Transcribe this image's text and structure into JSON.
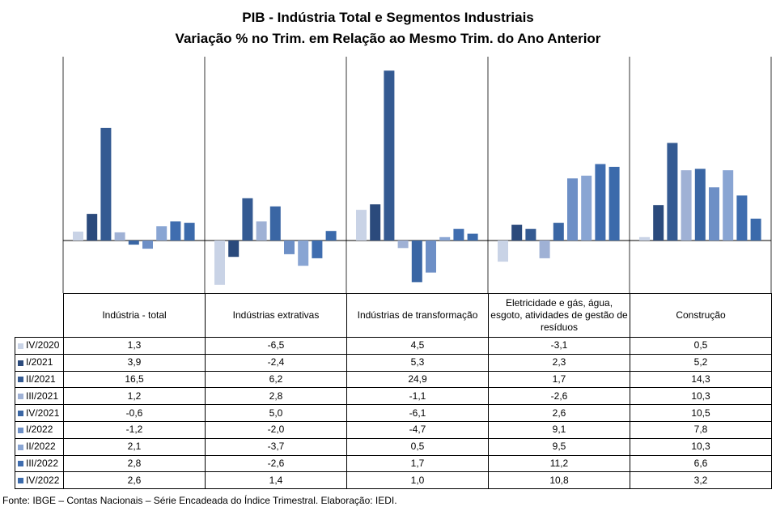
{
  "chart_data": {
    "type": "bar",
    "title": "PIB - Indústria Total e Segmentos Industriais",
    "subtitle": "Variação % no Trim. em Relação ao Mesmo Trim. do Ano Anterior",
    "categories": [
      "Indústria - total",
      "Indústrias extrativas",
      "Indústrias de transformação",
      "Eletricidade e gás, água, esgoto, atividades de gestão de resíduos",
      "Construção"
    ],
    "series": [
      {
        "name": "IV/2020",
        "color": "#c9d3e6",
        "values": [
          1.3,
          -6.5,
          4.5,
          -3.1,
          0.5
        ],
        "labels": [
          "1,3",
          "-6,5",
          "4,5",
          "-3,1",
          "0,5"
        ]
      },
      {
        "name": "I/2021",
        "color": "#2b4a7c",
        "values": [
          3.9,
          -2.4,
          5.3,
          2.3,
          5.2
        ],
        "labels": [
          "3,9",
          "-2,4",
          "5,3",
          "2,3",
          "5,2"
        ]
      },
      {
        "name": "II/2021",
        "color": "#345a92",
        "values": [
          16.5,
          6.2,
          24.9,
          1.7,
          14.3
        ],
        "labels": [
          "16,5",
          "6,2",
          "24,9",
          "1,7",
          "14,3"
        ]
      },
      {
        "name": "III/2021",
        "color": "#9fb1d5",
        "values": [
          1.2,
          2.8,
          -1.1,
          -2.6,
          10.3
        ],
        "labels": [
          "1,2",
          "2,8",
          "-1,1",
          "-2,6",
          "10,3"
        ]
      },
      {
        "name": "IV/2021",
        "color": "#3a66a4",
        "values": [
          -0.6,
          5.0,
          -6.1,
          2.6,
          10.5
        ],
        "labels": [
          "-0,6",
          "5,0",
          "-6,1",
          "2,6",
          "10,5"
        ]
      },
      {
        "name": "I/2022",
        "color": "#6d8fc6",
        "values": [
          -1.2,
          -2.0,
          -4.7,
          9.1,
          7.8
        ],
        "labels": [
          "-1,2",
          "-2,0",
          "-4,7",
          "9,1",
          "7,8"
        ]
      },
      {
        "name": "II/2022",
        "color": "#89a5d3",
        "values": [
          2.1,
          -3.7,
          0.5,
          9.5,
          10.3
        ],
        "labels": [
          "2,1",
          "-3,7",
          "0,5",
          "9,5",
          "10,3"
        ]
      },
      {
        "name": "III/2022",
        "color": "#3f6daf",
        "values": [
          2.8,
          -2.6,
          1.7,
          11.2,
          6.6
        ],
        "labels": [
          "2,8",
          "-2,6",
          "1,7",
          "11,2",
          "6,6"
        ]
      },
      {
        "name": "IV/2022",
        "color": "#3b6aab",
        "values": [
          2.6,
          1.4,
          1.0,
          10.8,
          3.2
        ],
        "labels": [
          "2,6",
          "1,4",
          "1,0",
          "10,8",
          "3,2"
        ]
      }
    ],
    "ylim": [
      -7.5,
      26.2
    ],
    "grid": false,
    "legend": "data table left"
  },
  "source": "Fonte: IBGE – Contas Nacionais – Série Encadeada do Índice Trimestral. Elaboração: IEDI."
}
